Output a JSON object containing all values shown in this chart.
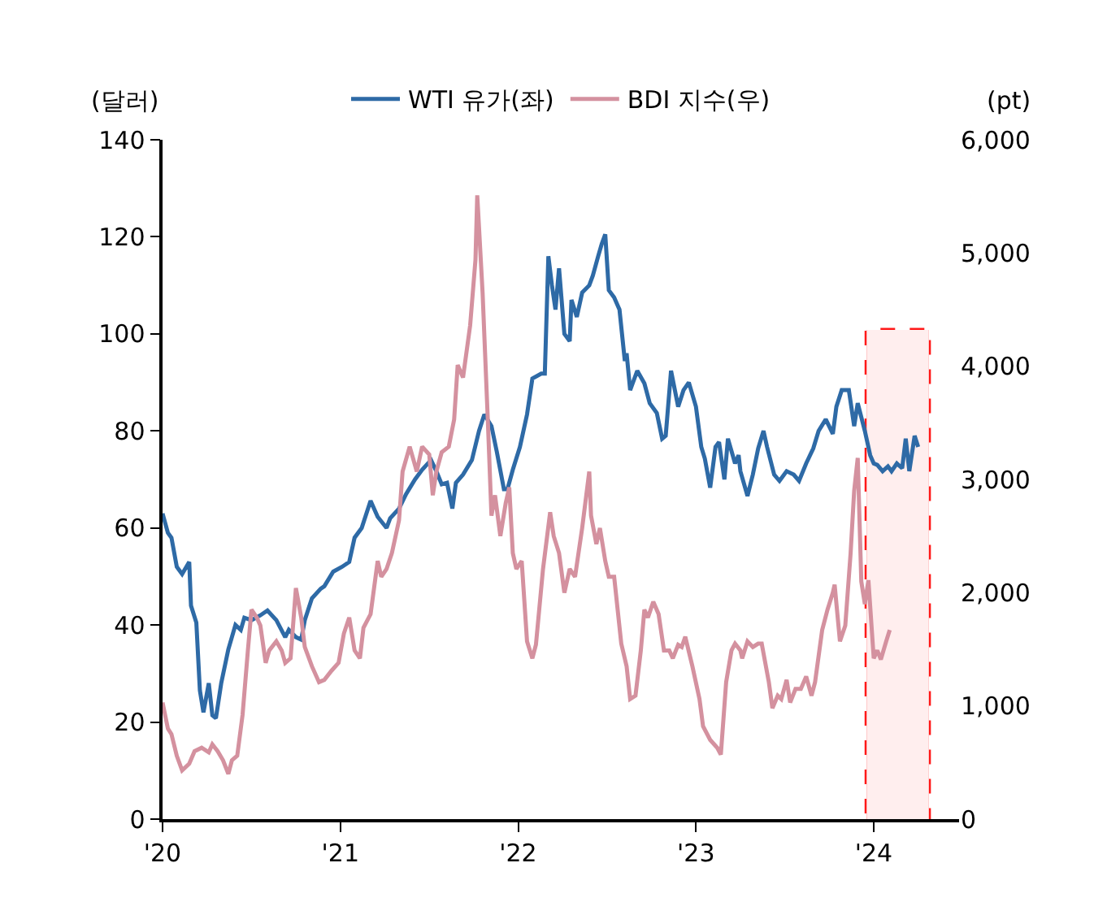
{
  "chart_data": {
    "type": "line",
    "xlabel": null,
    "ylabel": "(달러)",
    "y2label": "(pt)",
    "legend": "top",
    "grid": false,
    "marker": "none",
    "line_style": "solid",
    "xlim": [
      2020,
      2024.48
    ],
    "xticks": [
      {
        "value": 2020,
        "label": "'20"
      },
      {
        "value": 2021,
        "label": "'21"
      },
      {
        "value": 2022,
        "label": "'22"
      },
      {
        "value": 2023,
        "label": "'23"
      },
      {
        "value": 2024,
        "label": "'24"
      }
    ],
    "ylim": [
      0,
      140
    ],
    "yticks": [
      0,
      20,
      40,
      60,
      80,
      100,
      120,
      140
    ],
    "y2lim": [
      0,
      6000
    ],
    "y2ticks": [
      0,
      {
        "value": 1000,
        "label": "1,000"
      },
      {
        "value": 2000,
        "label": "2,000"
      },
      {
        "value": 3000,
        "label": "3,000"
      },
      {
        "value": 4000,
        "label": "4,000"
      },
      {
        "value": 5000,
        "label": "5,000"
      },
      {
        "value": 6000,
        "label": "6,000"
      }
    ],
    "bands": [
      {
        "axis": "x",
        "from": 2023.96,
        "to": 2024.31,
        "color": "#ff0000"
      }
    ],
    "series": [
      {
        "name": "WTI 유가(좌)",
        "color": "#2e6aa6",
        "x": [
          2020.0,
          2020.03,
          2020.05,
          2020.08,
          2020.11,
          2020.15,
          2020.16,
          2020.19,
          2020.21,
          2020.23,
          2020.26,
          2020.28,
          2020.3,
          2020.33,
          2020.37,
          2020.41,
          2020.44,
          2020.46,
          2020.5,
          2020.55,
          2020.59,
          2020.64,
          2020.69,
          2020.71,
          2020.75,
          2020.78,
          2020.8,
          2020.84,
          2020.89,
          2020.91,
          2020.96,
          2021.01,
          2021.05,
          2021.08,
          2021.12,
          2021.17,
          2021.21,
          2021.26,
          2021.28,
          2021.33,
          2021.37,
          2021.42,
          2021.46,
          2021.51,
          2021.54,
          2021.57,
          2021.6,
          2021.63,
          2021.65,
          2021.69,
          2021.74,
          2021.78,
          2021.81,
          2021.85,
          2021.88,
          2021.92,
          2021.94,
          2021.97,
          2022.01,
          2022.05,
          2022.08,
          2022.13,
          2022.15,
          2022.17,
          2022.19,
          2022.21,
          2022.23,
          2022.26,
          2022.29,
          2022.3,
          2022.33,
          2022.36,
          2022.4,
          2022.42,
          2022.45,
          2022.47,
          2022.49,
          2022.51,
          2022.54,
          2022.57,
          2022.6,
          2022.61,
          2022.63,
          2022.67,
          2022.71,
          2022.74,
          2022.78,
          2022.81,
          2022.83,
          2022.86,
          2022.9,
          2022.93,
          2022.96,
          2023.0,
          2023.03,
          2023.05,
          2023.08,
          2023.11,
          2023.13,
          2023.16,
          2023.18,
          2023.22,
          2023.24,
          2023.25,
          2023.29,
          2023.32,
          2023.35,
          2023.38,
          2023.4,
          2023.44,
          2023.47,
          2023.51,
          2023.55,
          2023.58,
          2023.62,
          2023.66,
          2023.69,
          2023.73,
          2023.77,
          2023.79,
          2023.82,
          2023.86,
          2023.89,
          2023.91,
          2023.95,
          2023.98,
          2024.0,
          2024.02,
          2024.05,
          2024.08,
          2024.1,
          2024.13,
          2024.16,
          2024.18,
          2024.2,
          2024.23,
          2024.25
        ],
        "values": [
          63,
          59,
          58,
          52,
          50.5,
          53,
          44,
          40.5,
          26.5,
          22,
          28,
          21.4,
          20.8,
          28,
          35,
          40,
          39,
          41.5,
          41,
          42,
          43,
          41,
          37.5,
          39,
          37.5,
          37,
          41,
          45.5,
          47.5,
          48,
          51,
          52,
          53,
          58,
          60,
          65.6,
          62.3,
          60,
          62,
          64,
          67,
          70,
          72,
          74,
          71.7,
          69,
          69.3,
          64,
          69.3,
          71,
          74,
          80,
          83.4,
          81,
          75.7,
          68,
          68,
          72,
          76.7,
          83.4,
          90.8,
          91.8,
          91.8,
          116,
          110,
          105,
          113.5,
          100,
          98.5,
          107,
          103.5,
          108.5,
          110,
          112,
          116,
          118.5,
          120.5,
          109,
          107.5,
          105,
          94.4,
          96,
          88.4,
          92.4,
          89.8,
          85.7,
          83.7,
          78.4,
          79,
          92.4,
          85,
          88.4,
          90,
          85,
          76.7,
          74.3,
          68.3,
          76.7,
          77.7,
          70,
          78.4,
          73.3,
          75,
          71.7,
          66.6,
          71,
          76.4,
          80,
          76.7,
          71,
          69.7,
          71.7,
          71,
          69.7,
          73.3,
          76.4,
          80,
          82.4,
          79.4,
          85,
          88.4,
          88.4,
          81,
          85.7,
          80,
          75,
          73.3,
          73,
          71.7,
          72.7,
          71.7,
          73.3,
          72.3,
          78.4,
          71.7,
          79,
          76.7
        ]
      },
      {
        "name": "BDI 지수(우)",
        "color": "#d4919f",
        "axis": "y2",
        "x": [
          2020.0,
          2020.03,
          2020.05,
          2020.08,
          2020.11,
          2020.15,
          2020.18,
          2020.22,
          2020.26,
          2020.28,
          2020.31,
          2020.34,
          2020.37,
          2020.39,
          2020.42,
          2020.45,
          2020.48,
          2020.5,
          2020.53,
          2020.55,
          2020.58,
          2020.6,
          2020.64,
          2020.67,
          2020.69,
          2020.72,
          2020.75,
          2020.78,
          2020.8,
          2020.84,
          2020.88,
          2020.91,
          2020.95,
          2020.99,
          2021.02,
          2021.05,
          2021.08,
          2021.11,
          2021.13,
          2021.17,
          2021.21,
          2021.23,
          2021.26,
          2021.29,
          2021.33,
          2021.35,
          2021.39,
          2021.43,
          2021.46,
          2021.5,
          2021.52,
          2021.54,
          2021.57,
          2021.61,
          2021.64,
          2021.66,
          2021.69,
          2021.73,
          2021.76,
          2021.77,
          2021.8,
          2021.83,
          2021.85,
          2021.87,
          2021.9,
          2021.93,
          2021.95,
          2021.97,
          2021.99,
          2022.02,
          2022.05,
          2022.08,
          2022.1,
          2022.14,
          2022.18,
          2022.2,
          2022.23,
          2022.26,
          2022.29,
          2022.32,
          2022.36,
          2022.4,
          2022.41,
          2022.44,
          2022.46,
          2022.49,
          2022.51,
          2022.54,
          2022.58,
          2022.61,
          2022.63,
          2022.66,
          2022.69,
          2022.71,
          2022.73,
          2022.76,
          2022.79,
          2022.82,
          2022.85,
          2022.87,
          2022.9,
          2022.92,
          2022.94,
          2022.98,
          2023.02,
          2023.04,
          2023.08,
          2023.12,
          2023.14,
          2023.17,
          2023.2,
          2023.22,
          2023.25,
          2023.26,
          2023.29,
          2023.32,
          2023.35,
          2023.37,
          2023.41,
          2023.43,
          2023.46,
          2023.48,
          2023.51,
          2023.53,
          2023.56,
          2023.59,
          2023.62,
          2023.65,
          2023.67,
          2023.71,
          2023.74,
          2023.77,
          2023.78,
          2023.81,
          2023.84,
          2023.87,
          2023.89,
          2023.91,
          2023.93,
          2023.95,
          2023.97,
          2024.0,
          2024.02,
          2024.04,
          2024.07,
          2024.09
        ],
        "values": [
          1030,
          800,
          750,
          560,
          430,
          490,
          600,
          630,
          590,
          660,
          600,
          520,
          400,
          520,
          560,
          920,
          1490,
          1850,
          1780,
          1710,
          1380,
          1490,
          1570,
          1490,
          1380,
          1420,
          2040,
          1780,
          1520,
          1350,
          1210,
          1230,
          1310,
          1380,
          1640,
          1780,
          1490,
          1420,
          1690,
          1810,
          2280,
          2140,
          2210,
          2350,
          2640,
          3070,
          3290,
          3070,
          3290,
          3220,
          2860,
          3070,
          3240,
          3290,
          3530,
          4010,
          3900,
          4360,
          4940,
          5510,
          4650,
          3500,
          2680,
          2860,
          2500,
          2790,
          2930,
          2350,
          2210,
          2280,
          1570,
          1420,
          1540,
          2210,
          2710,
          2500,
          2350,
          2000,
          2210,
          2140,
          2570,
          3070,
          2680,
          2430,
          2570,
          2280,
          2140,
          2140,
          1550,
          1350,
          1060,
          1090,
          1490,
          1850,
          1780,
          1920,
          1810,
          1490,
          1490,
          1420,
          1540,
          1520,
          1610,
          1350,
          1060,
          820,
          700,
          630,
          570,
          1210,
          1490,
          1550,
          1490,
          1420,
          1570,
          1520,
          1550,
          1550,
          1210,
          980,
          1090,
          1060,
          1230,
          1030,
          1150,
          1150,
          1260,
          1090,
          1210,
          1670,
          1850,
          2000,
          2070,
          1570,
          1710,
          2350,
          2900,
          3190,
          2100,
          1900,
          2110,
          1420,
          1490,
          1410,
          1570,
          1670
        ]
      }
    ]
  }
}
